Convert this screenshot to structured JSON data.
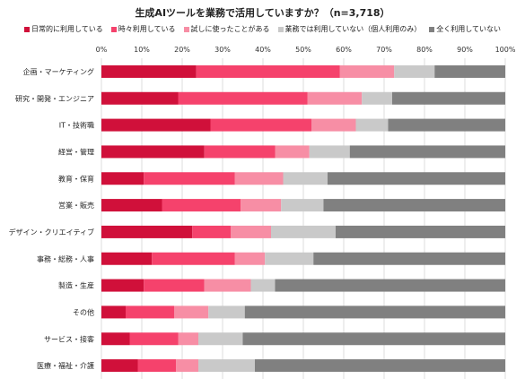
{
  "chart_data": {
    "type": "bar",
    "orientation": "horizontal",
    "stacked": true,
    "title": "生成AIツールを業務で活用していますか？（n=3,718）",
    "xlabel": "",
    "ylabel": "",
    "xlim": [
      0,
      100
    ],
    "x_ticks": [
      "0%",
      "10%",
      "20%",
      "30%",
      "40%",
      "50%",
      "60%",
      "70%",
      "80%",
      "90%",
      "100%"
    ],
    "grid": true,
    "legend_position": "top",
    "categories": [
      "企画・マーケティング",
      "研究・開発・エンジニア",
      "IT・技術職",
      "経営・管理",
      "教育・保育",
      "営業・販売",
      "デザイン・クリエイティブ",
      "事務・総務・人事",
      "製造・生産",
      "その他",
      "サービス・接客",
      "医療・福祉・介護"
    ],
    "series": [
      {
        "name": "日常的に利用している",
        "color": "#d0103a",
        "values": [
          23.5,
          19,
          27,
          25.5,
          10.5,
          15,
          22.5,
          12.5,
          10.5,
          6,
          7,
          9
        ]
      },
      {
        "name": "時々利用している",
        "color": "#f5426c",
        "values": [
          35.5,
          32,
          25,
          17.5,
          22.5,
          19.5,
          9.5,
          20.5,
          15,
          12,
          12,
          9.5
        ]
      },
      {
        "name": "試しに使ったことがある",
        "color": "#f78ea5",
        "values": [
          13.5,
          13.5,
          11,
          8.5,
          12,
          10,
          10,
          7.5,
          11.5,
          8.5,
          5,
          5.5
        ]
      },
      {
        "name": "業務では利用していない（個人利用のみ）",
        "color": "#c9c9c9",
        "values": [
          10,
          7.5,
          8,
          10,
          11,
          10.5,
          16,
          12,
          6,
          9,
          11,
          14
        ]
      },
      {
        "name": "全く利用していない",
        "color": "#808080",
        "values": [
          17.5,
          28,
          29,
          38.5,
          44,
          45,
          42,
          47.5,
          57,
          64.5,
          65,
          62
        ]
      }
    ]
  }
}
